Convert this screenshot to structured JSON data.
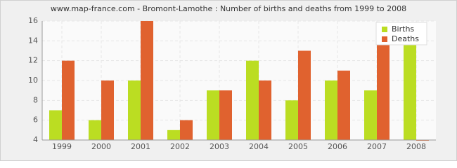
{
  "chart_data": {
    "type": "bar",
    "title": "www.map-france.com - Bromont-Lamothe : Number of births and deaths from 1999 to 2008",
    "categories": [
      "1999",
      "2000",
      "2001",
      "2002",
      "2003",
      "2004",
      "2005",
      "2006",
      "2007",
      "2008"
    ],
    "series": [
      {
        "name": "Births",
        "color": "#bbdd22",
        "values": [
          7,
          6,
          10,
          5,
          9,
          12,
          8,
          10,
          9,
          14
        ]
      },
      {
        "name": "Deaths",
        "color": "#e0622f",
        "values": [
          12,
          10,
          16,
          6,
          9,
          10,
          13,
          11,
          14,
          4
        ]
      }
    ],
    "ylim": [
      4,
      16
    ],
    "yticks": [
      4,
      6,
      8,
      10,
      12,
      14,
      16
    ],
    "grid": true,
    "legend": "top-right"
  }
}
